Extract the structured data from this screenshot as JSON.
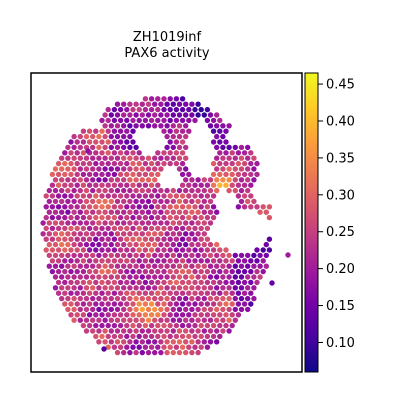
{
  "chart_data": {
    "type": "heatmap",
    "title_line1": "ZH1019inf",
    "title_line2": "PAX6 activity",
    "xlabel": "",
    "ylabel": "",
    "colormap": "plasma",
    "colorbar": {
      "range": [
        0.06,
        0.465
      ],
      "ticks": [
        0.1,
        0.15,
        0.2,
        0.25,
        0.3,
        0.35,
        0.4,
        0.45
      ],
      "tick_labels": [
        "0.10",
        "0.15",
        "0.20",
        "0.25",
        "0.30",
        "0.35",
        "0.40",
        "0.45"
      ]
    },
    "grid": false,
    "legend": "colorbar-right",
    "spots_note_hidden": "",
    "colors": {
      "plasma_stops": [
        "#0d0887",
        "#46039f",
        "#7201a8",
        "#9c179e",
        "#bd3786",
        "#d8576b",
        "#ed7953",
        "#fb9f3a",
        "#fdca26",
        "#f0f921"
      ]
    }
  }
}
